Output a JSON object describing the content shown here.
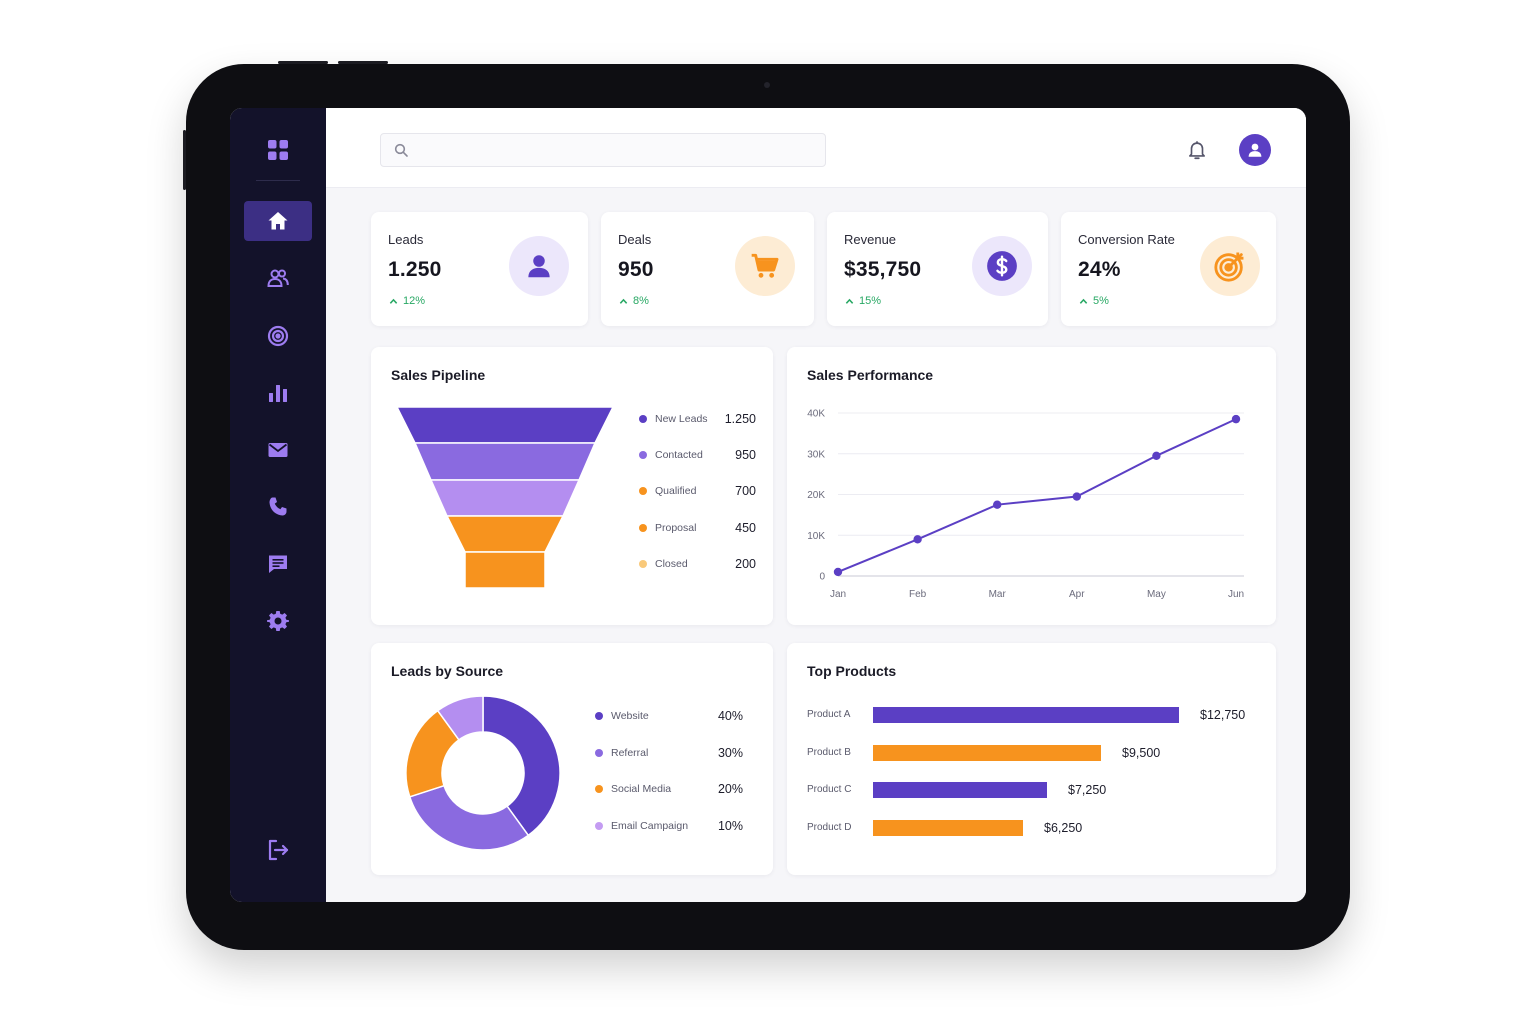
{
  "colors": {
    "accent": "#5b3fc4",
    "orange": "#f7931e",
    "sidebar_bg": "#13122a",
    "trend_up": "#28a864"
  },
  "search": {
    "placeholder": "",
    "value": ""
  },
  "sidebar": {
    "items": [
      {
        "icon": "home-icon",
        "active": true
      },
      {
        "icon": "users-icon",
        "active": false
      },
      {
        "icon": "target-icon",
        "active": false
      },
      {
        "icon": "bar-chart-icon",
        "active": false
      },
      {
        "icon": "mail-icon",
        "active": false
      },
      {
        "icon": "phone-icon",
        "active": false
      },
      {
        "icon": "chat-icon",
        "active": false
      },
      {
        "icon": "gear-icon",
        "active": false
      }
    ],
    "logout_icon": "logout-icon"
  },
  "kpis": [
    {
      "title": "Leads",
      "value": "1.250",
      "trend": "12%",
      "icon": "user-icon"
    },
    {
      "title": "Deals",
      "value": "950",
      "trend": "8%",
      "icon": "cart-icon"
    },
    {
      "title": "Revenue",
      "value": "$35,750",
      "trend": "15%",
      "icon": "dollar-icon"
    },
    {
      "title": "Conversion Rate",
      "value": "24%",
      "trend": "5%",
      "icon": "target-icon"
    }
  ],
  "pipeline": {
    "title": "Sales Pipeline",
    "stages": [
      {
        "label": "New Leads",
        "value": "1.250",
        "color": "#5b3fc4"
      },
      {
        "label": "Contacted",
        "value": "950",
        "color": "#8a6ae0"
      },
      {
        "label": "Qualified",
        "value": "700",
        "color": "#f7931e"
      },
      {
        "label": "Proposal",
        "value": "450",
        "color": "#f7931e"
      },
      {
        "label": "Closed",
        "value": "200",
        "color": "#f9c97a"
      }
    ],
    "funnel_colors": [
      "#5b3fc4",
      "#8a6ae0",
      "#b48ef0",
      "#f7931e",
      "#f7931e"
    ]
  },
  "performance": {
    "title": "Sales Performance",
    "chart_data": {
      "type": "line",
      "x": [
        "Jan",
        "Feb",
        "Mar",
        "Apr",
        "May",
        "Jun"
      ],
      "series": [
        {
          "values": [
            1000,
            9000,
            17500,
            19500,
            29500,
            38500
          ]
        }
      ],
      "yticks": [
        "40K",
        "30K",
        "20K",
        "10K",
        "0"
      ],
      "ylim": [
        0,
        40000
      ],
      "grid": true
    }
  },
  "sources": {
    "title": "Leads by Source",
    "chart_data": {
      "type": "pie",
      "categories": [
        "Website",
        "Referral",
        "Social Media",
        "Email Campaign"
      ],
      "values": [
        40,
        30,
        20,
        10
      ],
      "labels": [
        "40%",
        "30%",
        "20%",
        "10%"
      ],
      "colors": [
        "#5b3fc4",
        "#8a6ae0",
        "#f7931e",
        "#c49cf2"
      ]
    },
    "donut_colors_order": [
      "#5b3fc4",
      "#8a6ae0",
      "#f7931e",
      "#b48ef0"
    ]
  },
  "products": {
    "title": "Top Products",
    "chart_data": {
      "type": "bar",
      "categories": [
        "Product A",
        "Product B",
        "Product C",
        "Product D"
      ],
      "values": [
        12750,
        9500,
        7250,
        6250
      ],
      "labels": [
        "$12,750",
        "$9,500",
        "$7,250",
        "$6,250"
      ],
      "colors": [
        "#5b3fc4",
        "#f7931e",
        "#5b3fc4",
        "#f7931e"
      ]
    }
  }
}
